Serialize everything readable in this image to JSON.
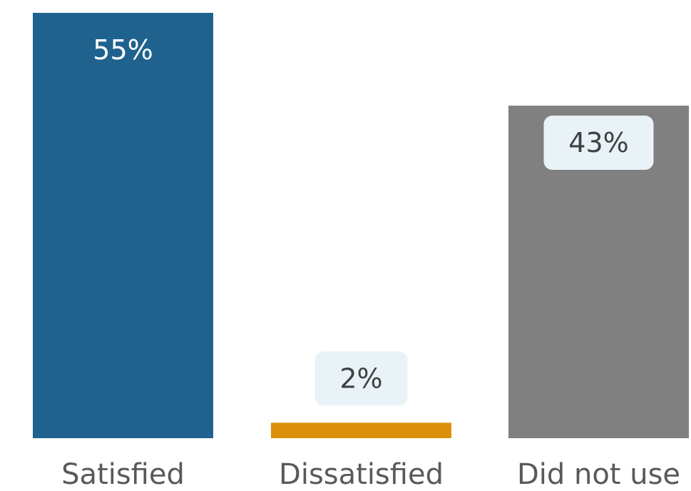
{
  "chart_data": {
    "type": "bar",
    "categories": [
      "Satisfied",
      "Dissatisfied",
      "Did not use"
    ],
    "values": [
      55,
      2,
      43
    ],
    "value_labels": [
      "55%",
      "2%",
      "43%"
    ],
    "colors": [
      "#1f628e",
      "#dc8f0b",
      "#808080"
    ],
    "label_text_colors": [
      "#ffffff",
      "#404040",
      "#404040"
    ],
    "label_box_colors": [
      "#1f628e",
      "#e9f2f7",
      "#e9f2f7"
    ],
    "ylim": [
      0,
      55
    ],
    "title": "",
    "xlabel": "",
    "ylabel": "",
    "grid": false,
    "legend": "none"
  }
}
